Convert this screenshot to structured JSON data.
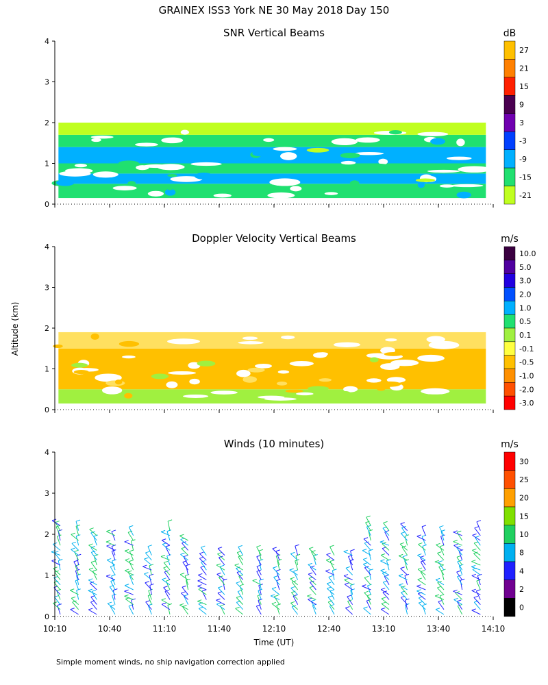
{
  "title": "GRAINEX ISS3 York NE  30 May 2018 Day 150",
  "ylabel": "Altitude (km)",
  "xlabel": "Time (UT)",
  "footnote": "Simple moment winds, no ship navigation correction applied",
  "chart_data": [
    {
      "type": "heatmap",
      "title": "SNR Vertical Beams",
      "x_range_minutes": [
        0,
        240
      ],
      "ylim": [
        0,
        4
      ],
      "y_ticks": [
        "0",
        "1",
        "2",
        "3",
        "4"
      ],
      "colorbar": {
        "unit": "dB",
        "labels": [
          "27",
          "21",
          "15",
          "9",
          "3",
          "-3",
          "-9",
          "-15",
          "-21"
        ],
        "colors": [
          "#ffc000",
          "#ff8000",
          "#ff2000",
          "#4a0050",
          "#7000b0",
          "#0040ff",
          "#00b0ff",
          "#20e070",
          "#c0ff20"
        ]
      },
      "echo_layers": [
        {
          "z0": 0.15,
          "z1": 0.5,
          "color": "#20e070"
        },
        {
          "z0": 0.5,
          "z1": 0.75,
          "color": "#00b0ff"
        },
        {
          "z0": 0.75,
          "z1": 1.0,
          "color": "#20e070"
        },
        {
          "z0": 1.0,
          "z1": 1.4,
          "color": "#00b0ff"
        },
        {
          "z0": 1.4,
          "z1": 1.7,
          "color": "#20e070"
        },
        {
          "z0": 1.7,
          "z1": 2.0,
          "color": "#c0ff20"
        }
      ]
    },
    {
      "type": "heatmap",
      "title": "Doppler Velocity Vertical Beams",
      "x_range_minutes": [
        0,
        240
      ],
      "ylim": [
        0,
        4
      ],
      "y_ticks": [
        "0",
        "1",
        "2",
        "3",
        "4"
      ],
      "colorbar": {
        "unit": "m/s",
        "labels": [
          "10.0",
          "5.0",
          "3.0",
          "2.0",
          "1.0",
          "0.5",
          "0.1",
          "-0.1",
          "-0.5",
          "-1.0",
          "-2.0",
          "-3.0"
        ],
        "colors": [
          "#3a0040",
          "#5000a0",
          "#2000e0",
          "#0050ff",
          "#00b0ff",
          "#20e070",
          "#a0f040",
          "#ffff40",
          "#ffc000",
          "#ff9000",
          "#ff5000",
          "#ff0000"
        ]
      },
      "echo_layers": [
        {
          "z0": 0.15,
          "z1": 0.5,
          "color": "#a0f040"
        },
        {
          "z0": 0.5,
          "z1": 1.5,
          "color": "#ffc000"
        },
        {
          "z0": 1.5,
          "z1": 1.9,
          "color": "#ffe060"
        }
      ]
    },
    {
      "type": "wind_barbs",
      "title": "Winds (10 minutes)",
      "x_range_minutes": [
        0,
        240
      ],
      "ylim": [
        0,
        4
      ],
      "y_ticks": [
        "0",
        "1",
        "2",
        "3",
        "4"
      ],
      "x_ticks": [
        "10:10",
        "10:40",
        "11:10",
        "11:40",
        "12:10",
        "12:40",
        "13:10",
        "13:40",
        "14:10"
      ],
      "x_tick_minutes": [
        0,
        30,
        60,
        90,
        120,
        150,
        180,
        210,
        240
      ],
      "colorbar": {
        "unit": "m/s",
        "labels": [
          "30",
          "25",
          "20",
          "15",
          "10",
          "8",
          "4",
          "2",
          "0"
        ],
        "colors": [
          "#ff0000",
          "#ff5000",
          "#ffa000",
          "#80e000",
          "#20d060",
          "#00b0f0",
          "#2020ff",
          "#700090",
          "#000000"
        ]
      },
      "barb_columns": [
        {
          "t": 0,
          "top_km": 2.3
        },
        {
          "t": 10,
          "top_km": 2.1
        },
        {
          "t": 20,
          "top_km": 2.0
        },
        {
          "t": 30,
          "top_km": 2.0
        },
        {
          "t": 40,
          "top_km": 2.0
        },
        {
          "t": 50,
          "top_km": 1.6
        },
        {
          "t": 60,
          "top_km": 2.1
        },
        {
          "t": 70,
          "top_km": 1.9
        },
        {
          "t": 80,
          "top_km": 1.6
        },
        {
          "t": 90,
          "top_km": 1.5
        },
        {
          "t": 100,
          "top_km": 1.6
        },
        {
          "t": 110,
          "top_km": 1.6
        },
        {
          "t": 120,
          "top_km": 1.6
        },
        {
          "t": 130,
          "top_km": 1.5
        },
        {
          "t": 140,
          "top_km": 1.6
        },
        {
          "t": 150,
          "top_km": 1.6
        },
        {
          "t": 160,
          "top_km": 1.6
        },
        {
          "t": 170,
          "top_km": 2.3
        },
        {
          "t": 180,
          "top_km": 2.1
        },
        {
          "t": 190,
          "top_km": 2.1
        },
        {
          "t": 200,
          "top_km": 2.0
        },
        {
          "t": 210,
          "top_km": 2.0
        },
        {
          "t": 220,
          "top_km": 2.0
        },
        {
          "t": 230,
          "top_km": 2.1
        }
      ]
    }
  ]
}
